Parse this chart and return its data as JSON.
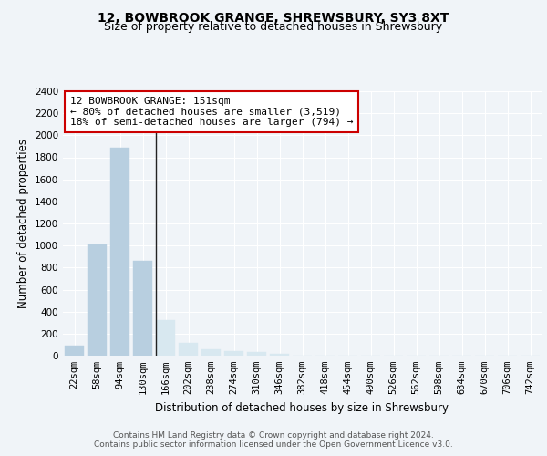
{
  "title_line1": "12, BOWBROOK GRANGE, SHREWSBURY, SY3 8XT",
  "title_line2": "Size of property relative to detached houses in Shrewsbury",
  "xlabel": "Distribution of detached houses by size in Shrewsbury",
  "ylabel": "Number of detached properties",
  "bar_labels": [
    "22sqm",
    "58sqm",
    "94sqm",
    "130sqm",
    "166sqm",
    "202sqm",
    "238sqm",
    "274sqm",
    "310sqm",
    "346sqm",
    "382sqm",
    "418sqm",
    "454sqm",
    "490sqm",
    "526sqm",
    "562sqm",
    "598sqm",
    "634sqm",
    "670sqm",
    "706sqm",
    "742sqm"
  ],
  "bar_values": [
    90,
    1010,
    1890,
    860,
    320,
    115,
    55,
    45,
    30,
    20,
    0,
    0,
    0,
    0,
    0,
    0,
    0,
    0,
    0,
    0,
    0
  ],
  "bar_color_small": "#b8cfe0",
  "bar_color_large": "#d8e8f0",
  "highlight_boundary": 3,
  "vline_position": 3.58,
  "ylim": [
    0,
    2400
  ],
  "yticks": [
    0,
    200,
    400,
    600,
    800,
    1000,
    1200,
    1400,
    1600,
    1800,
    2000,
    2200,
    2400
  ],
  "annotation_title": "12 BOWBROOK GRANGE: 151sqm",
  "annotation_line1": "← 80% of detached houses are smaller (3,519)",
  "annotation_line2": "18% of semi-detached houses are larger (794) →",
  "footer_line1": "Contains HM Land Registry data © Crown copyright and database right 2024.",
  "footer_line2": "Contains public sector information licensed under the Open Government Licence v3.0.",
  "bg_color": "#f0f4f8",
  "grid_color": "#ffffff",
  "vline_color": "#222222",
  "annotation_box_edgecolor": "#cc0000",
  "annotation_box_facecolor": "#ffffff",
  "title_fontsize": 10,
  "subtitle_fontsize": 9,
  "axis_label_fontsize": 8.5,
  "tick_fontsize": 7.5,
  "annotation_fontsize": 8,
  "footer_fontsize": 6.5
}
